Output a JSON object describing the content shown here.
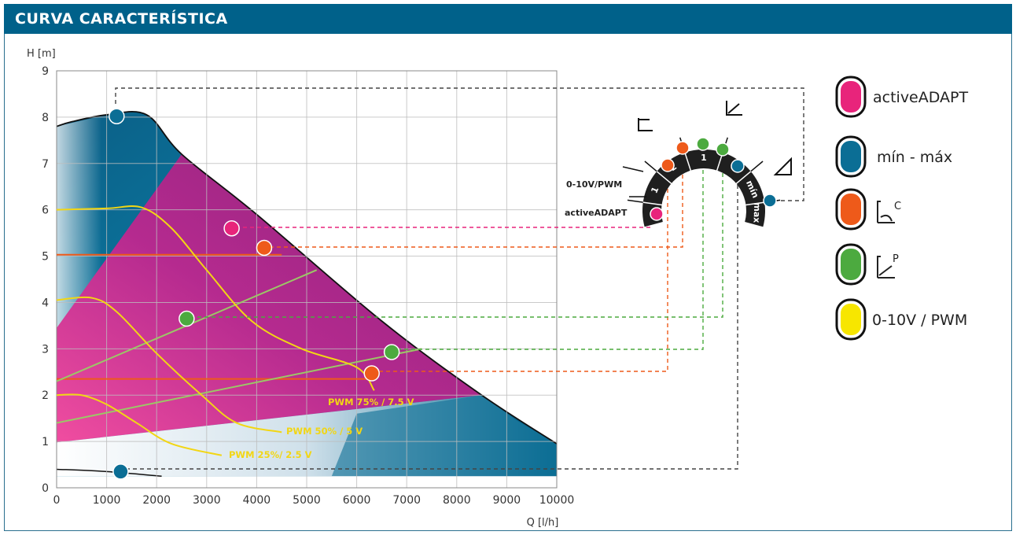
{
  "header": {
    "title": "CURVA CARACTERÍSTICA"
  },
  "colors": {
    "header": "#00618a",
    "blue": "#0b6e95",
    "magenta": "#b02488",
    "pink": "#e8247b",
    "orange": "#ee5a1a",
    "green": "#4caa3f",
    "yellow": "#f2d614",
    "lightgreen": "#9bc766",
    "dial": "#1f1f1f"
  },
  "chart_data": {
    "type": "line",
    "xlabel": "Q [l/h]",
    "ylabel": "H [m]",
    "xlim": [
      0,
      10000
    ],
    "ylim": [
      0,
      9
    ],
    "xticks": [
      0,
      1000,
      2000,
      3000,
      4000,
      5000,
      6000,
      7000,
      8000,
      9000,
      10000
    ],
    "yticks": [
      0,
      1,
      2,
      3,
      4,
      5,
      6,
      7,
      8,
      9
    ],
    "grid": true,
    "envelope": {
      "name": "mín - máx",
      "max_curve": [
        [
          0,
          7.8
        ],
        [
          300,
          7.9
        ],
        [
          1000,
          8.05
        ],
        [
          1800,
          8.05
        ],
        [
          2500,
          7.2
        ],
        [
          4000,
          5.9
        ],
        [
          6500,
          3.6
        ],
        [
          8500,
          2.0
        ],
        [
          10000,
          0.95
        ]
      ],
      "min_curve": [
        [
          0,
          0.4
        ],
        [
          1000,
          0.35
        ],
        [
          2100,
          0.25
        ]
      ]
    },
    "series": [
      {
        "name": "PWM 75% / 7.5 V",
        "points": [
          [
            0,
            6.0
          ],
          [
            1000,
            6.03
          ],
          [
            1700,
            6.05
          ],
          [
            2300,
            5.6
          ],
          [
            3000,
            4.7
          ],
          [
            3900,
            3.6
          ],
          [
            4900,
            3.0
          ],
          [
            6000,
            2.6
          ],
          [
            6350,
            2.1
          ]
        ]
      },
      {
        "name": "PWM 50% / 5 V",
        "points": [
          [
            0,
            4.05
          ],
          [
            700,
            4.1
          ],
          [
            1200,
            3.8
          ],
          [
            2000,
            2.9
          ],
          [
            2900,
            2.0
          ],
          [
            3600,
            1.4
          ],
          [
            4500,
            1.2
          ]
        ]
      },
      {
        "name": "PWM 25% / 2.5 V",
        "points": [
          [
            0,
            2.0
          ],
          [
            500,
            2.0
          ],
          [
            1000,
            1.8
          ],
          [
            1600,
            1.4
          ],
          [
            2300,
            0.95
          ],
          [
            3300,
            0.7
          ]
        ]
      }
    ],
    "reference_lines": [
      {
        "mode": "constant pressure 2",
        "points": [
          [
            0,
            5.03
          ],
          [
            4500,
            5.03
          ]
        ]
      },
      {
        "mode": "constant pressure 1",
        "points": [
          [
            0,
            2.35
          ],
          [
            6300,
            2.35
          ]
        ]
      },
      {
        "mode": "proportional pressure 1",
        "points": [
          [
            0,
            2.3
          ],
          [
            5200,
            4.7
          ]
        ]
      },
      {
        "mode": "proportional pressure 2",
        "points": [
          [
            0,
            1.4
          ],
          [
            7300,
            3.0
          ]
        ]
      }
    ],
    "operating_points": [
      {
        "mode": "max",
        "x": 1200,
        "y": 8.02,
        "color": "blue"
      },
      {
        "mode": "activeADAPT",
        "x": 3500,
        "y": 5.6,
        "color": "pink"
      },
      {
        "mode": "constant pressure 2",
        "x": 4150,
        "y": 5.18,
        "color": "orange"
      },
      {
        "mode": "proportional pressure 1",
        "x": 2600,
        "y": 3.65,
        "color": "green"
      },
      {
        "mode": "proportional pressure 2",
        "x": 6700,
        "y": 2.93,
        "color": "green"
      },
      {
        "mode": "constant pressure 1",
        "x": 6300,
        "y": 2.47,
        "color": "orange"
      },
      {
        "mode": "min",
        "x": 1280,
        "y": 0.35,
        "color": "blue"
      }
    ]
  },
  "curve_labels": {
    "pwm75": "PWM 75% / 7.5 V",
    "pwm50": "PWM 50% / 5 V",
    "pwm25": "PWM 25%/ 2.5 V"
  },
  "dial": {
    "segments": [
      "1",
      "2",
      "1",
      "2",
      "mín",
      "max"
    ],
    "mode_labels": {
      "pwm": "0-10V/PWM",
      "adapt": "activeADAPT"
    }
  },
  "legend": [
    {
      "label": "activeADAPT",
      "color": "pink",
      "icon": ""
    },
    {
      "label": "mín - máx",
      "color": "blue",
      "icon": ""
    },
    {
      "label": "C",
      "color": "orange",
      "icon": "constant-pressure-icon"
    },
    {
      "label": "P",
      "color": "green",
      "icon": "proportional-pressure-icon"
    },
    {
      "label": "0-10V / PWM",
      "color": "yellow",
      "icon": ""
    }
  ]
}
